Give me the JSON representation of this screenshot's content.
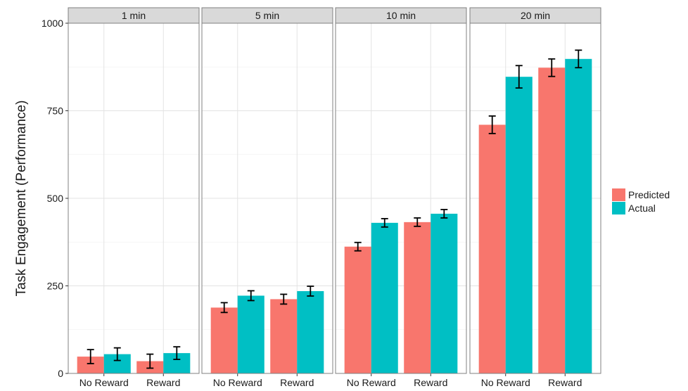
{
  "chart_data": {
    "type": "bar",
    "title": "",
    "xlabel": "",
    "ylabel": "Task Engagement (Performance)",
    "ylim": [
      0,
      1000
    ],
    "yticks": [
      0,
      250,
      500,
      750,
      1000
    ],
    "grid": true,
    "legend_position": "right",
    "categories": [
      "No Reward",
      "Reward"
    ],
    "series_names": [
      "Predicted",
      "Actual"
    ],
    "colors": {
      "Predicted": "#F8766D",
      "Actual": "#00BFC4"
    },
    "facets": [
      {
        "label": "1 min",
        "series": [
          {
            "name": "Predicted",
            "values": [
              48,
              35
            ],
            "errors": [
              20,
              20
            ]
          },
          {
            "name": "Actual",
            "values": [
              55,
              58
            ],
            "errors": [
              18,
              18
            ]
          }
        ]
      },
      {
        "label": "5 min",
        "series": [
          {
            "name": "Predicted",
            "values": [
              188,
              212
            ],
            "errors": [
              14,
              14
            ]
          },
          {
            "name": "Actual",
            "values": [
              222,
              235
            ],
            "errors": [
              14,
              14
            ]
          }
        ]
      },
      {
        "label": "10 min",
        "series": [
          {
            "name": "Predicted",
            "values": [
              362,
              432
            ],
            "errors": [
              12,
              12
            ]
          },
          {
            "name": "Actual",
            "values": [
              430,
              456
            ],
            "errors": [
              12,
              12
            ]
          }
        ]
      },
      {
        "label": "20 min",
        "series": [
          {
            "name": "Predicted",
            "values": [
              710,
              873
            ],
            "errors": [
              25,
              25
            ]
          },
          {
            "name": "Actual",
            "values": [
              847,
              898
            ],
            "errors": [
              32,
              25
            ]
          }
        ]
      }
    ]
  }
}
